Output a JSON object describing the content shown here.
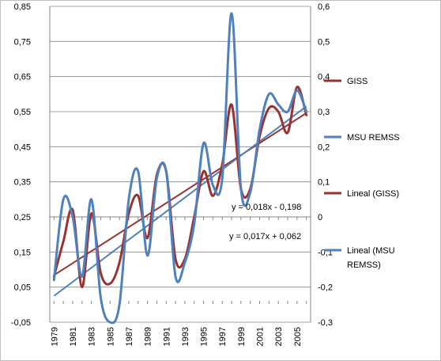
{
  "chart_data": {
    "type": "line",
    "x": [
      1979,
      1980,
      1981,
      1982,
      1983,
      1984,
      1985,
      1986,
      1987,
      1988,
      1989,
      1990,
      1991,
      1992,
      1993,
      1994,
      1995,
      1996,
      1997,
      1998,
      1999,
      2000,
      2001,
      2002,
      2003,
      2004,
      2005,
      2006
    ],
    "x_tick_labels": [
      "1979",
      "1981",
      "1983",
      "1985",
      "1987",
      "1989",
      "1991",
      "1993",
      "1995",
      "1997",
      "1999",
      "2001",
      "2003",
      "2005"
    ],
    "y_left_ticks": [
      "0,85",
      "0,75",
      "0,65",
      "0,55",
      "0,45",
      "0,35",
      "0,25",
      "0,15",
      "0,05",
      "-0,05"
    ],
    "y_right_ticks": [
      "0,6",
      "0,5",
      "0,4",
      "0,3",
      "0,2",
      "0,1",
      "0",
      "-0,1",
      "-0,2",
      "-0,3"
    ],
    "ylim_left": [
      -0.05,
      0.85
    ],
    "ylim_right": [
      -0.3,
      0.6
    ],
    "grid": true,
    "legend_position": "right",
    "series": [
      {
        "name": "GISS",
        "axis": "left",
        "color": "#993333",
        "values": [
          0.08,
          0.18,
          0.27,
          0.05,
          0.26,
          0.09,
          0.06,
          0.12,
          0.26,
          0.31,
          0.19,
          0.37,
          0.38,
          0.13,
          0.13,
          0.25,
          0.38,
          0.31,
          0.4,
          0.57,
          0.33,
          0.33,
          0.48,
          0.56,
          0.55,
          0.49,
          0.62,
          0.54
        ]
      },
      {
        "name": "MSU REMSS",
        "axis": "right",
        "color": "#4f81bd",
        "values": [
          -0.18,
          0.05,
          0.0,
          -0.17,
          0.05,
          -0.23,
          -0.3,
          -0.25,
          0.05,
          0.13,
          -0.11,
          0.11,
          0.13,
          -0.17,
          -0.13,
          -0.02,
          0.21,
          0.09,
          0.11,
          0.58,
          0.08,
          0.07,
          0.25,
          0.35,
          0.32,
          0.3,
          0.36,
          0.3
        ]
      },
      {
        "name": "Lineal (GISS)",
        "axis": "left",
        "color": "#993333",
        "trend": {
          "from": [
            1979,
            0.084
          ],
          "to": [
            2006,
            0.546
          ]
        }
      },
      {
        "name": "Lineal (MSU\nREMSS)",
        "axis": "right",
        "color": "#4f81bd",
        "trend": {
          "from": [
            1979,
            -0.225
          ],
          "to": [
            2006,
            0.315
          ]
        }
      }
    ],
    "annotations": [
      "y = 0,018x - 0,198",
      "y = 0,017x + 0,062"
    ],
    "legend_entries": [
      "GISS",
      "MSU REMSS",
      "Lineal (GISS)",
      "Lineal (MSU",
      "REMSS)"
    ]
  }
}
